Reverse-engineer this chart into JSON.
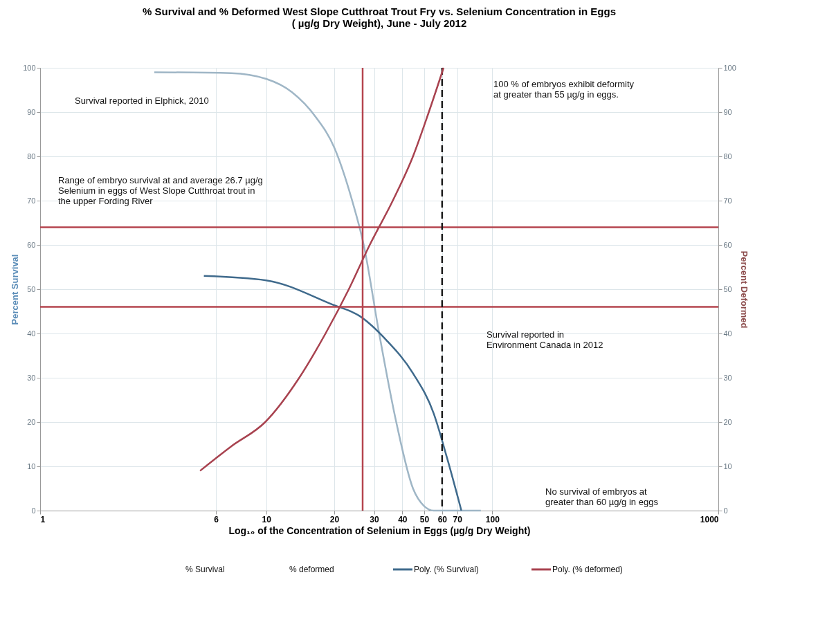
{
  "chart_data": {
    "type": "line",
    "title": "% Survival and % Deformed  West Slope Cutthroat Trout Fry vs. Selenium Concentration in Eggs\n( µg/g Dry Weight), June - July 2012",
    "xlabel": "Log₁₀ of the Concentration of Selenium in Eggs (µg/g Dry Weight)",
    "ylabel": "Percent Survival",
    "y2label": "Percent Deformed",
    "log": "x",
    "xlim": [
      1,
      1000
    ],
    "xticks": [
      1,
      6,
      10,
      20,
      30,
      40,
      50,
      60,
      70,
      100,
      1000
    ],
    "ylim": [
      0,
      100
    ],
    "yticks": [
      0,
      10,
      20,
      30,
      40,
      50,
      60,
      70,
      80,
      90,
      100
    ],
    "y2lim": [
      0,
      100
    ],
    "y2ticks": [
      0,
      10,
      20,
      30,
      40,
      50,
      60,
      70,
      80,
      90,
      100
    ],
    "grid": true,
    "legend": "bottom",
    "series": [
      {
        "color": "#9fb6c6",
        "x": [
          3.2,
          7,
          10,
          13,
          16.5,
          20,
          24,
          27,
          31.6,
          37.6,
          44.6,
          50,
          55,
          70,
          89
        ],
        "values": [
          99,
          98.8,
          97.5,
          94.5,
          89,
          82,
          70,
          60,
          40,
          20,
          5,
          1,
          0,
          0,
          0
        ]
      },
      {
        "name": "Poly. (% Survival)",
        "color": "#3f6a8c",
        "x": [
          5.3,
          10,
          19.7,
          25.8,
          34,
          44.6,
          55,
          63,
          73
        ],
        "values": [
          53,
          52,
          46.5,
          44,
          38.5,
          31,
          22,
          12,
          0
        ]
      },
      {
        "name": "Poly. (% deformed)",
        "color": "#a8424f",
        "axis": "y2",
        "x": [
          5.1,
          7,
          9.9,
          14,
          18.3,
          23.2,
          28.7,
          36.3,
          44.6,
          52.4,
          60.9
        ],
        "values": [
          9,
          14.5,
          20,
          30,
          40,
          50,
          60,
          70,
          80,
          90,
          100
        ]
      }
    ],
    "ref_lines": [
      {
        "axis": "y",
        "value": 64,
        "color": "#b5454f"
      },
      {
        "axis": "y",
        "value": 46,
        "color": "#b5454f"
      },
      {
        "axis": "x",
        "value": 26.7,
        "color": "#b5454f"
      },
      {
        "axis": "x",
        "value": 60,
        "color": "#1a1a1a",
        "line_style": "dashed"
      }
    ],
    "annotations": [
      "% Survival",
      "% deformed",
      "100 % of embryos exhibit deformity\nat greater than 55 µg/g in eggs.",
      "Survival reported in Elphick, 2010",
      "Range of embryo survival at and average 26.7 µg/g\nSelenium in eggs of West Slope Cutthroat trout in\nthe upper Fording River",
      "Survival reported in\nEnvironment Canada in 2012",
      "No survival of embryos at\ngreater than 60 µg/g in eggs"
    ]
  }
}
